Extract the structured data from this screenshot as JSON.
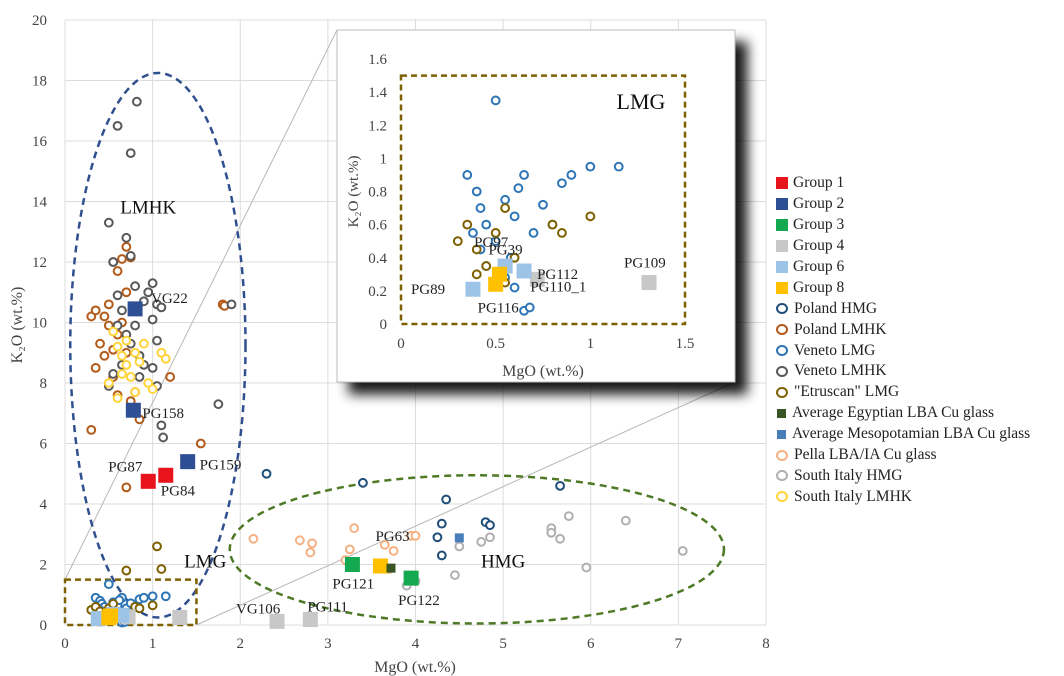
{
  "chart_data": {
    "type": "scatter",
    "title": "",
    "xlabel": "MgO (wt.%)",
    "ylabel": "K₂O (wt.%)",
    "xlim": [
      0,
      8
    ],
    "ylim": [
      0,
      20
    ],
    "xticks": [
      "0",
      "1",
      "2",
      "3",
      "4",
      "5",
      "6",
      "7",
      "8"
    ],
    "yticks": [
      "0",
      "2",
      "4",
      "6",
      "8",
      "10",
      "12",
      "14",
      "16",
      "18",
      "20"
    ],
    "grid": true,
    "legend_position": "right",
    "region_labels": [
      {
        "text": "LMHK",
        "x": 0.95,
        "y": 13.6
      },
      {
        "text": "LMG",
        "x": 1.6,
        "y": 1.9
      },
      {
        "text": "HMG",
        "x": 5.0,
        "y": 1.9
      }
    ],
    "series": [
      {
        "name": "Group 1",
        "color": "#e8141c",
        "marker": "square",
        "points": [
          {
            "x": 0.95,
            "y": 4.75,
            "label": "PG87"
          },
          {
            "x": 1.15,
            "y": 4.95,
            "label": "PG84"
          }
        ]
      },
      {
        "name": "Group 2",
        "color": "#2f4f94",
        "marker": "square",
        "points": [
          {
            "x": 0.8,
            "y": 10.45,
            "label": "VG22"
          },
          {
            "x": 0.78,
            "y": 7.1,
            "label": "PG158"
          },
          {
            "x": 1.4,
            "y": 5.4,
            "label": "PG159"
          }
        ]
      },
      {
        "name": "Group 3",
        "color": "#14a850",
        "marker": "square",
        "points": [
          {
            "x": 3.28,
            "y": 2.0,
            "label": "PG121"
          },
          {
            "x": 3.95,
            "y": 1.55,
            "label": "PG122"
          }
        ]
      },
      {
        "name": "Group 4",
        "color": "#c8c8c8",
        "marker": "square",
        "points": [
          {
            "x": 2.42,
            "y": 0.12,
            "label": "VG106"
          },
          {
            "x": 2.8,
            "y": 0.18,
            "label": "PG111"
          },
          {
            "x": 1.31,
            "y": 0.25,
            "label": "PG109"
          },
          {
            "x": 0.72,
            "y": 0.27,
            "label": "PG110_1"
          }
        ]
      },
      {
        "name": "Group 6",
        "color": "#9dc3e6",
        "marker": "square",
        "points": [
          {
            "x": 0.38,
            "y": 0.21,
            "label": "PG89"
          },
          {
            "x": 0.65,
            "y": 0.32,
            "label": "PG112"
          },
          {
            "x": 0.55,
            "y": 0.35,
            "label": "PG97"
          }
        ]
      },
      {
        "name": "Group 8",
        "color": "#ffc000",
        "marker": "square",
        "points": [
          {
            "x": 3.6,
            "y": 1.95,
            "label": "PG63"
          },
          {
            "x": 0.5,
            "y": 0.24,
            "label": "PG116"
          },
          {
            "x": 0.52,
            "y": 0.3,
            "label": "PG39"
          }
        ]
      },
      {
        "name": "Poland HMG",
        "color": "#1f4e79",
        "marker": "circle",
        "points": [
          [
            2.3,
            5.0
          ],
          [
            3.4,
            4.7
          ],
          [
            4.35,
            4.15
          ],
          [
            4.8,
            3.4
          ],
          [
            4.85,
            3.3
          ],
          [
            4.3,
            3.35
          ],
          [
            4.25,
            2.9
          ],
          [
            4.3,
            2.3
          ],
          [
            5.65,
            4.6
          ]
        ]
      },
      {
        "name": "Poland LMHK",
        "color": "#b25a1a",
        "marker": "circle",
        "points": [
          [
            0.3,
            10.2
          ],
          [
            0.35,
            10.4
          ],
          [
            0.45,
            10.2
          ],
          [
            0.5,
            9.9
          ],
          [
            0.6,
            9.6
          ],
          [
            0.4,
            9.3
          ],
          [
            0.55,
            12.0
          ],
          [
            0.6,
            11.7
          ],
          [
            0.7,
            12.5
          ],
          [
            0.75,
            12.15
          ],
          [
            0.65,
            12.1
          ],
          [
            0.45,
            8.9
          ],
          [
            0.35,
            8.5
          ],
          [
            0.55,
            8.2
          ],
          [
            0.6,
            7.6
          ],
          [
            0.7,
            9.0
          ],
          [
            0.8,
            7.7
          ],
          [
            1.2,
            8.2
          ],
          [
            1.8,
            10.6
          ],
          [
            1.82,
            10.55
          ],
          [
            1.55,
            6.0
          ],
          [
            0.7,
            4.55
          ],
          [
            0.85,
            6.8
          ],
          [
            0.75,
            7.4
          ],
          [
            0.3,
            6.45
          ],
          [
            0.5,
            10.6
          ],
          [
            0.7,
            11.0
          ],
          [
            0.55,
            9.1
          ],
          [
            0.65,
            10.0
          ]
        ]
      },
      {
        "name": "Veneto LMG",
        "color": "#2e75b6",
        "marker": "circle",
        "points": [
          [
            0.35,
            0.9
          ],
          [
            0.4,
            0.8
          ],
          [
            0.42,
            0.7
          ],
          [
            0.45,
            0.6
          ],
          [
            0.5,
            0.5
          ],
          [
            0.55,
            0.75
          ],
          [
            0.6,
            0.65
          ],
          [
            0.65,
            0.9
          ],
          [
            0.7,
            0.55
          ],
          [
            0.75,
            0.72
          ],
          [
            0.8,
            0.6
          ],
          [
            0.85,
            0.85
          ],
          [
            0.5,
            1.35
          ],
          [
            0.45,
            0.35
          ],
          [
            0.55,
            0.28
          ],
          [
            0.6,
            0.22
          ],
          [
            0.65,
            0.08
          ],
          [
            0.68,
            0.1
          ],
          [
            0.9,
            0.9
          ],
          [
            1.0,
            0.95
          ],
          [
            1.15,
            0.95
          ],
          [
            0.38,
            0.55
          ],
          [
            0.42,
            0.45
          ],
          [
            0.58,
            0.4
          ],
          [
            0.62,
            0.82
          ]
        ]
      },
      {
        "name": "Veneto LMHK",
        "color": "#595959",
        "marker": "circle",
        "points": [
          [
            0.6,
            16.5
          ],
          [
            0.75,
            15.6
          ],
          [
            0.82,
            17.3
          ],
          [
            0.5,
            13.3
          ],
          [
            0.55,
            12.0
          ],
          [
            0.7,
            12.8
          ],
          [
            0.75,
            12.2
          ],
          [
            0.8,
            11.2
          ],
          [
            0.95,
            11.0
          ],
          [
            1.0,
            11.3
          ],
          [
            1.05,
            10.6
          ],
          [
            1.1,
            10.5
          ],
          [
            1.0,
            10.1
          ],
          [
            0.65,
            10.4
          ],
          [
            0.6,
            9.9
          ],
          [
            0.7,
            9.6
          ],
          [
            0.75,
            9.3
          ],
          [
            0.85,
            8.9
          ],
          [
            0.9,
            8.6
          ],
          [
            1.0,
            8.5
          ],
          [
            1.05,
            7.9
          ],
          [
            0.85,
            8.2
          ],
          [
            0.65,
            8.6
          ],
          [
            0.55,
            8.3
          ],
          [
            0.5,
            7.9
          ],
          [
            1.1,
            6.6
          ],
          [
            1.12,
            6.2
          ],
          [
            1.75,
            7.3
          ],
          [
            1.9,
            10.6
          ],
          [
            0.9,
            10.7
          ],
          [
            0.8,
            9.9
          ],
          [
            0.6,
            10.9
          ],
          [
            1.05,
            9.4
          ]
        ]
      },
      {
        "name": "\"Etruscan\" LMG",
        "color": "#7f6000",
        "marker": "circle",
        "points": [
          [
            0.3,
            0.5
          ],
          [
            0.35,
            0.6
          ],
          [
            0.4,
            0.45
          ],
          [
            0.45,
            0.35
          ],
          [
            0.5,
            0.55
          ],
          [
            0.55,
            0.7
          ],
          [
            0.6,
            0.4
          ],
          [
            0.8,
            0.6
          ],
          [
            0.85,
            0.55
          ],
          [
            1.0,
            0.65
          ],
          [
            1.05,
            2.6
          ],
          [
            1.1,
            1.85
          ],
          [
            0.7,
            1.8
          ],
          [
            0.4,
            0.3
          ],
          [
            0.55,
            0.25
          ]
        ]
      },
      {
        "name": "Average Egyptian LBA Cu glass",
        "color": "#375623",
        "marker": "smallsquare",
        "points": [
          [
            3.72,
            1.88
          ]
        ]
      },
      {
        "name": "Average Mesopotamian LBA Cu glass",
        "color": "#4a7ebb",
        "marker": "smallsquare",
        "points": [
          [
            4.5,
            2.88
          ]
        ]
      },
      {
        "name": "Pella LBA/IA Cu glass",
        "color": "#f4b183",
        "marker": "circle",
        "points": [
          [
            2.15,
            2.85
          ],
          [
            2.68,
            2.8
          ],
          [
            2.82,
            2.7
          ],
          [
            2.8,
            2.4
          ],
          [
            3.25,
            2.5
          ],
          [
            3.2,
            2.15
          ],
          [
            3.3,
            3.2
          ],
          [
            3.65,
            2.65
          ],
          [
            3.75,
            2.45
          ],
          [
            3.95,
            2.95
          ],
          [
            4.0,
            2.95
          ],
          [
            3.7,
            1.85
          ]
        ]
      },
      {
        "name": "South Italy HMG",
        "color": "#b0b0b0",
        "marker": "circle",
        "points": [
          [
            4.5,
            2.6
          ],
          [
            4.75,
            2.75
          ],
          [
            4.85,
            2.9
          ],
          [
            5.55,
            3.2
          ],
          [
            5.55,
            3.05
          ],
          [
            5.65,
            2.85
          ],
          [
            5.75,
            3.6
          ],
          [
            6.4,
            3.45
          ],
          [
            5.95,
            1.9
          ],
          [
            7.05,
            2.45
          ],
          [
            4.45,
            1.65
          ],
          [
            4.0,
            1.45
          ],
          [
            3.9,
            1.3
          ]
        ]
      },
      {
        "name": "South Italy LMHK",
        "color": "#ffd43b",
        "marker": "circle",
        "points": [
          [
            0.55,
            9.7
          ],
          [
            0.6,
            9.2
          ],
          [
            0.65,
            8.9
          ],
          [
            0.7,
            8.6
          ],
          [
            0.75,
            8.2
          ],
          [
            0.8,
            9.0
          ],
          [
            0.85,
            8.7
          ],
          [
            0.9,
            9.3
          ],
          [
            0.95,
            8.0
          ],
          [
            1.0,
            7.8
          ],
          [
            1.1,
            9.0
          ],
          [
            1.15,
            8.8
          ],
          [
            0.5,
            8.0
          ],
          [
            0.6,
            7.5
          ],
          [
            0.8,
            7.7
          ],
          [
            0.7,
            9.4
          ],
          [
            0.65,
            8.3
          ]
        ]
      }
    ]
  },
  "inset": {
    "xlabel": "MgO (wt.%)",
    "ylabel": "K₂O (wt.%)",
    "xlim": [
      0,
      1.5
    ],
    "ylim": [
      0,
      1.6
    ],
    "xticks": [
      "0",
      "0.5",
      "1",
      "1.5"
    ],
    "yticks": [
      "0",
      "0.2",
      "0.4",
      "0.6",
      "0.8",
      "1",
      "1.2",
      "1.4",
      "1.6"
    ],
    "region_label": "LMG"
  }
}
